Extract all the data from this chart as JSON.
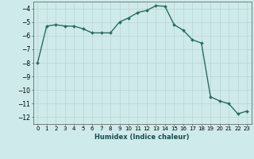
{
  "x": [
    0,
    1,
    2,
    3,
    4,
    5,
    6,
    7,
    8,
    9,
    10,
    11,
    12,
    13,
    14,
    15,
    16,
    17,
    18,
    19,
    20,
    21,
    22,
    23
  ],
  "y": [
    -8.0,
    -5.3,
    -5.2,
    -5.3,
    -5.3,
    -5.5,
    -5.8,
    -5.8,
    -5.8,
    -5.0,
    -4.7,
    -4.3,
    -4.15,
    -3.8,
    -3.85,
    -5.2,
    -5.6,
    -6.3,
    -6.55,
    -10.5,
    -10.8,
    -11.0,
    -11.75,
    -11.55
  ],
  "line_color": "#2e6b5e",
  "marker": "D",
  "markersize": 2.0,
  "linewidth": 1.0,
  "xlabel": "Humidex (Indice chaleur)",
  "xlim": [
    -0.5,
    23.5
  ],
  "ylim": [
    -12.5,
    -3.5
  ],
  "yticks": [
    -4,
    -5,
    -6,
    -7,
    -8,
    -9,
    -10,
    -11,
    -12
  ],
  "xticks": [
    0,
    1,
    2,
    3,
    4,
    5,
    6,
    7,
    8,
    9,
    10,
    11,
    12,
    13,
    14,
    15,
    16,
    17,
    18,
    19,
    20,
    21,
    22,
    23
  ],
  "xtick_labels": [
    "0",
    "1",
    "2",
    "3",
    "4",
    "5",
    "6",
    "7",
    "8",
    "9",
    "10",
    "11",
    "12",
    "13",
    "14",
    "15",
    "16",
    "17",
    "18",
    "19",
    "20",
    "21",
    "22",
    "23"
  ],
  "bg_color": "#ceeaea",
  "grid_color": "#b8d4d4",
  "xlabel_fontsize": 6.0,
  "ytick_fontsize": 5.5,
  "xtick_fontsize": 5.0
}
